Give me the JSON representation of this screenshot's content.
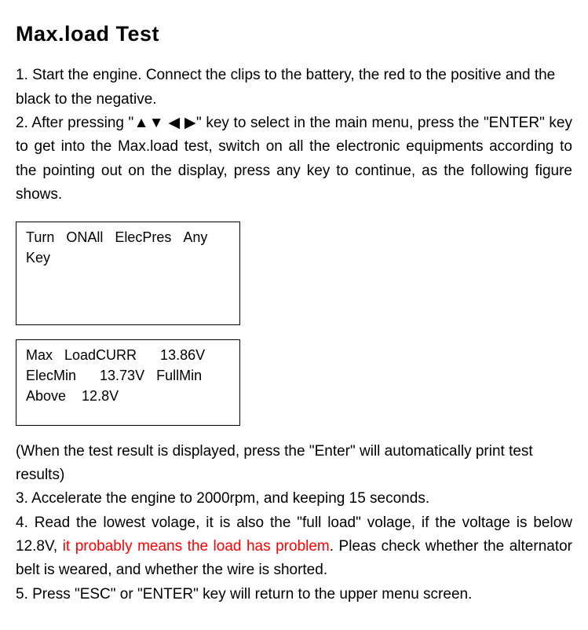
{
  "title": "Max.load Test",
  "step1": "1. Start the engine. Connect the clips to the battery, the red to the positive and the black to the negative.",
  "step2_a": "2. After pressing \"",
  "step2_arrows": "▲▼ ◀ ▶",
  "step2_b": "\" key to select in the main menu, press the \"ENTER\" key to get into the Max.load test, switch on all the electronic equipments according to the pointing out on the display, press any key to continue, as the following figure shows.",
  "box1_line1": "Turn   ONAll   ElecPres   Any",
  "box1_line2": "Key",
  "box2_line1": "Max   LoadCURR      13.86V",
  "box2_line2": "ElecMin      13.73V   FullMin",
  "box2_line3": "Above    12.8V",
  "note": "(When the test result is displayed, press the \"Enter\" will automatically print test results)",
  "step3": "3. Accelerate the engine to 2000rpm, and keeping 15 seconds.",
  "step4_a": "4. Read the lowest volage, it is also the \"full load\" volage, if the voltage is below 12.8V, ",
  "step4_warn": "it probably means the load has problem",
  "step4_b": ". Pleas check whether the alternator belt is weared, and whether the wire is shorted.",
  "step5": "5. Press \"ESC\" or \"ENTER\" key will return to the upper menu screen."
}
